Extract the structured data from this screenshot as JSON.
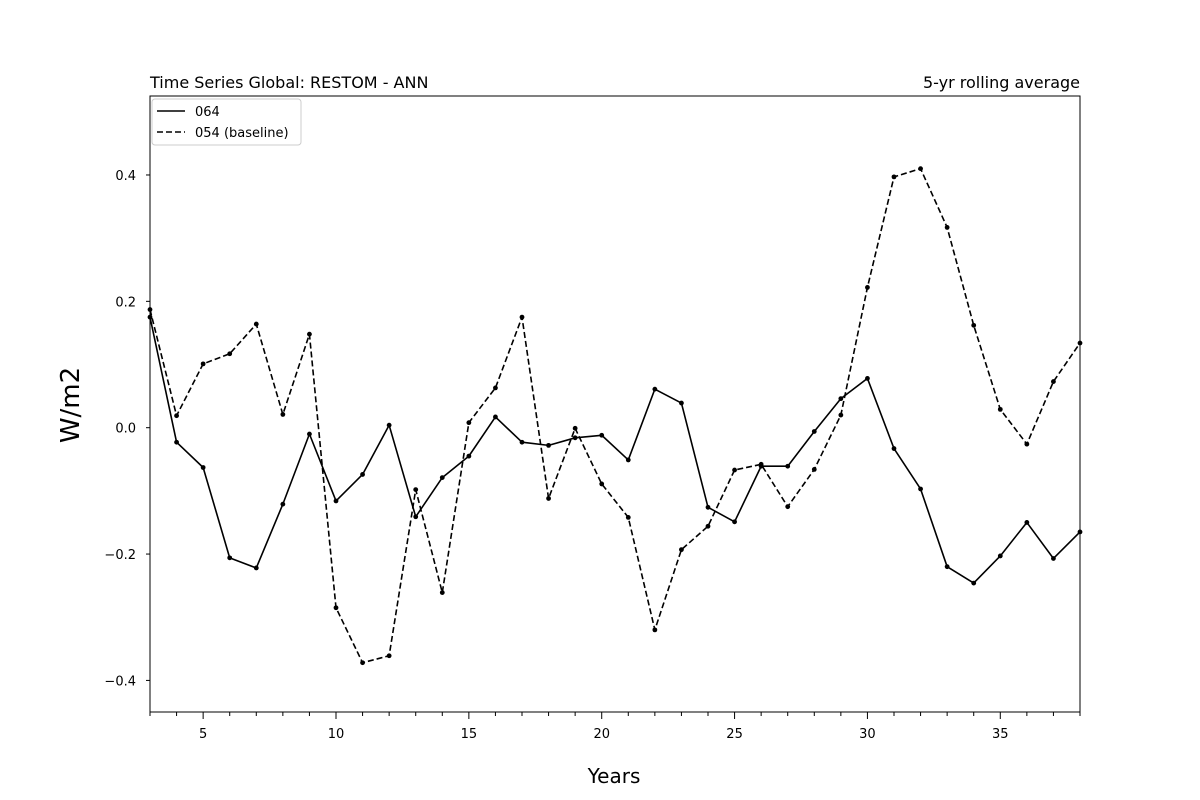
{
  "chart_data": {
    "type": "line",
    "title_left": "Time Series Global: RESTOM - ANN",
    "title_right": "5-yr rolling average",
    "xlabel": "Years",
    "ylabel": "W/m2",
    "xlim": [
      3,
      38
    ],
    "ylim": [
      -0.45,
      0.525
    ],
    "x_ticks_major": [
      5,
      10,
      15,
      20,
      25,
      30,
      35
    ],
    "x_ticks_minor": [
      3,
      4,
      6,
      7,
      8,
      9,
      11,
      12,
      13,
      14,
      16,
      17,
      18,
      19,
      21,
      22,
      23,
      24,
      26,
      27,
      28,
      29,
      31,
      32,
      33,
      34,
      36,
      37,
      38
    ],
    "y_ticks": [
      -0.4,
      -0.2,
      0.0,
      0.2,
      0.4
    ],
    "y_tick_labels": [
      "−0.4",
      "−0.2",
      "0.0",
      "0.2",
      "0.4"
    ],
    "grid": false,
    "legend_position": "top-left",
    "x": [
      3,
      4,
      5,
      6,
      7,
      8,
      9,
      10,
      11,
      12,
      13,
      14,
      15,
      16,
      17,
      18,
      19,
      20,
      21,
      22,
      23,
      24,
      25,
      26,
      27,
      28,
      29,
      30,
      31,
      32,
      33,
      34,
      35,
      36,
      37,
      38
    ],
    "series": [
      {
        "name": "064",
        "style": "solid",
        "color": "#000000",
        "values": [
          0.175,
          -0.023,
          -0.063,
          -0.206,
          -0.222,
          -0.121,
          -0.01,
          -0.116,
          -0.074,
          0.004,
          -0.141,
          -0.079,
          -0.045,
          0.017,
          -0.023,
          -0.028,
          -0.016,
          -0.012,
          -0.051,
          0.061,
          0.039,
          -0.126,
          -0.149,
          -0.061,
          -0.061,
          -0.006,
          0.046,
          0.078,
          -0.033,
          -0.097,
          -0.22,
          -0.246,
          -0.203,
          -0.15,
          -0.207,
          -0.165
        ]
      },
      {
        "name": "054 (baseline)",
        "style": "dashed",
        "color": "#000000",
        "values": [
          0.187,
          0.019,
          0.101,
          0.117,
          0.164,
          0.021,
          0.148,
          -0.285,
          -0.372,
          -0.361,
          -0.098,
          -0.261,
          0.008,
          0.063,
          0.175,
          -0.112,
          -0.001,
          -0.089,
          -0.142,
          -0.32,
          -0.193,
          -0.156,
          -0.067,
          -0.058,
          -0.125,
          -0.066,
          0.02,
          0.222,
          0.397,
          0.41,
          0.317,
          0.162,
          0.029,
          -0.026,
          0.073,
          0.134
        ]
      }
    ]
  }
}
